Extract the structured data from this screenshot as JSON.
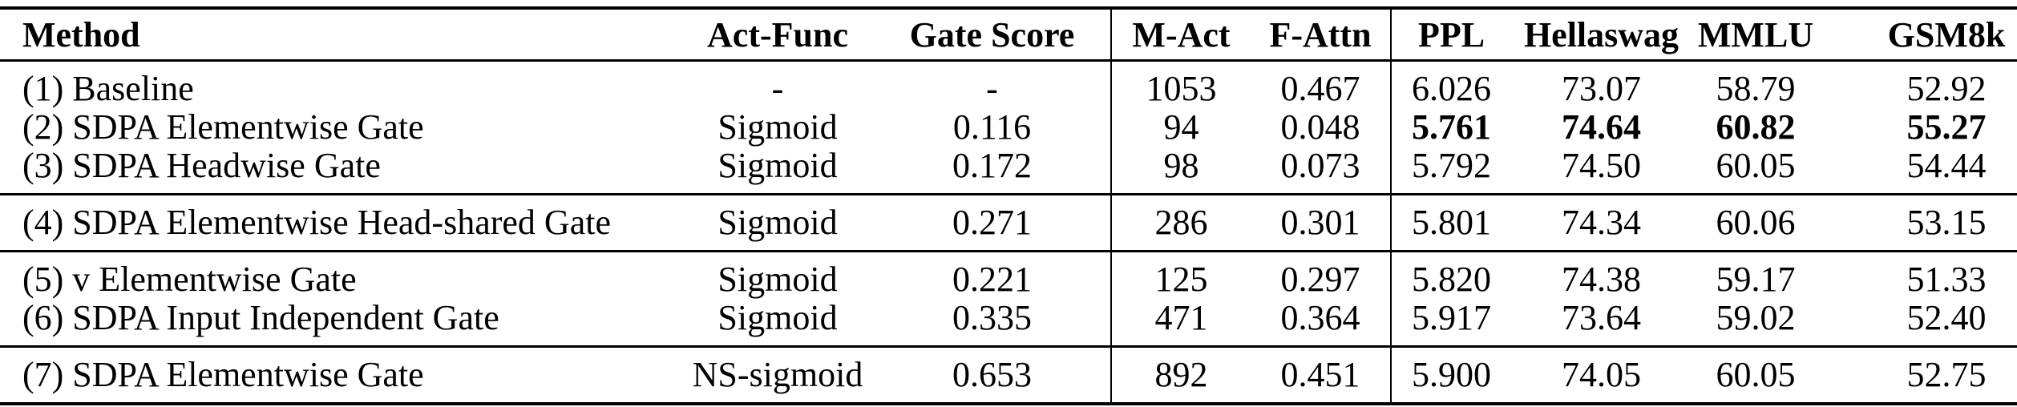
{
  "table": {
    "columns": [
      {
        "label": "Method"
      },
      {
        "label": "Act-Func"
      },
      {
        "label": "Gate Score"
      },
      {
        "label": "M-Act"
      },
      {
        "label": "F-Attn"
      },
      {
        "label": "PPL"
      },
      {
        "label": "Hellaswag"
      },
      {
        "label": "MMLU"
      },
      {
        "label": "GSM8k"
      }
    ],
    "groups": [
      {
        "rows": [
          {
            "cells": [
              "(1) Baseline",
              "-",
              "-",
              "1053",
              "0.467",
              "6.026",
              "73.07",
              "58.79",
              "52.92"
            ],
            "bold_columns": []
          },
          {
            "cells": [
              "(2) SDPA Elementwise Gate",
              "Sigmoid",
              "0.116",
              "94",
              "0.048",
              "5.761",
              "74.64",
              "60.82",
              "55.27"
            ],
            "bold_columns": [
              5,
              6,
              7,
              8
            ]
          },
          {
            "cells": [
              "(3) SDPA Headwise Gate",
              "Sigmoid",
              "0.172",
              "98",
              "0.073",
              "5.792",
              "74.50",
              "60.05",
              "54.44"
            ],
            "bold_columns": []
          }
        ]
      },
      {
        "rows": [
          {
            "cells": [
              "(4) SDPA Elementwise Head-shared Gate",
              "Sigmoid",
              "0.271",
              "286",
              "0.301",
              "5.801",
              "74.34",
              "60.06",
              "53.15"
            ],
            "bold_columns": []
          }
        ]
      },
      {
        "rows": [
          {
            "cells": [
              "(5) v Elementwise Gate",
              "Sigmoid",
              "0.221",
              "125",
              "0.297",
              "5.820",
              "74.38",
              "59.17",
              "51.33"
            ],
            "bold_columns": []
          },
          {
            "cells": [
              "(6) SDPA Input Independent Gate",
              "Sigmoid",
              "0.335",
              "471",
              "0.364",
              "5.917",
              "73.64",
              "59.02",
              "52.40"
            ],
            "bold_columns": []
          }
        ]
      },
      {
        "rows": [
          {
            "cells": [
              "(7) SDPA Elementwise Gate",
              "NS-sigmoid",
              "0.653",
              "892",
              "0.451",
              "5.900",
              "74.05",
              "60.05",
              "52.75"
            ],
            "bold_columns": []
          }
        ]
      }
    ]
  }
}
